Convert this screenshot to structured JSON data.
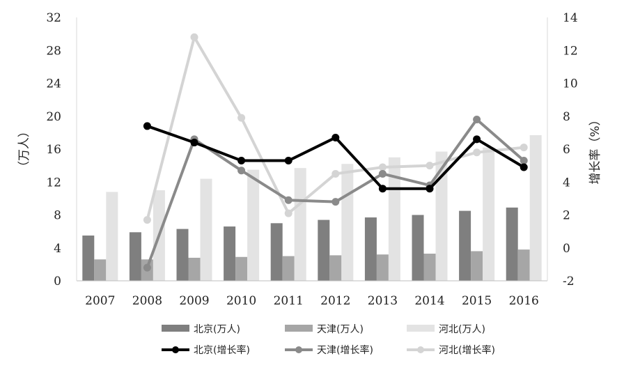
{
  "chart_data": {
    "type": "bar+line",
    "categories": [
      "2007",
      "2008",
      "2009",
      "2010",
      "2011",
      "2012",
      "2013",
      "2014",
      "2015",
      "2016"
    ],
    "left_axis": {
      "label": "（万人）",
      "ylim": [
        0,
        32
      ],
      "ticks": [
        "0",
        "4",
        "8",
        "12",
        "16",
        "20",
        "24",
        "28",
        "32"
      ]
    },
    "right_axis": {
      "label": "增长率（%）",
      "ylim": [
        -2,
        14
      ],
      "ticks": [
        "-2",
        "0",
        "2",
        "4",
        "6",
        "8",
        "10",
        "12",
        "14"
      ]
    },
    "bar_series": [
      {
        "name": "北京(万人)",
        "color": "#7f7f7f",
        "values": [
          5.5,
          5.9,
          6.3,
          6.6,
          7.0,
          7.4,
          7.7,
          8.0,
          8.5,
          8.9
        ]
      },
      {
        "name": "天津(万人)",
        "color": "#a6a6a6",
        "values": [
          2.6,
          2.6,
          2.8,
          2.9,
          3.0,
          3.1,
          3.2,
          3.3,
          3.6,
          3.8
        ]
      },
      {
        "name": "河北(万人)",
        "color": "#e3e3e3",
        "values": [
          10.8,
          11.0,
          12.4,
          13.5,
          13.7,
          14.2,
          15.0,
          15.7,
          16.2,
          17.7
        ]
      }
    ],
    "line_series": [
      {
        "name": "北京(增长率)",
        "color": "#000000",
        "values": [
          null,
          7.4,
          6.4,
          5.3,
          5.3,
          6.7,
          3.6,
          3.6,
          6.6,
          4.9
        ]
      },
      {
        "name": "天津(增长率)",
        "color": "#8a8a8a",
        "values": [
          null,
          -1.2,
          6.6,
          4.7,
          2.9,
          2.8,
          4.5,
          3.8,
          7.8,
          5.3
        ]
      },
      {
        "name": "河北(增长率)",
        "color": "#d4d4d4",
        "values": [
          null,
          1.7,
          12.8,
          7.9,
          2.1,
          4.5,
          4.9,
          5.0,
          5.8,
          6.1
        ]
      }
    ],
    "grid": false,
    "legend_position": "bottom"
  }
}
